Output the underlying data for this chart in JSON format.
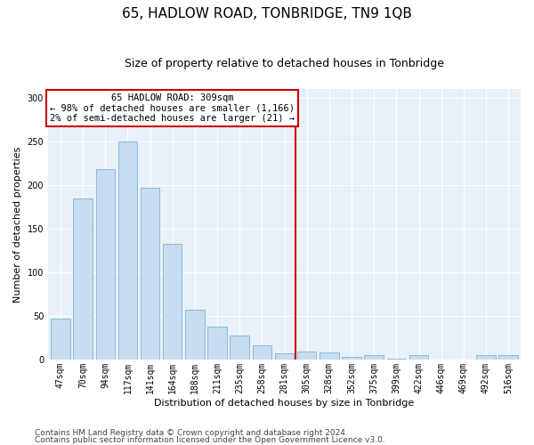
{
  "title": "65, HADLOW ROAD, TONBRIDGE, TN9 1QB",
  "subtitle": "Size of property relative to detached houses in Tonbridge",
  "xlabel": "Distribution of detached houses by size in Tonbridge",
  "ylabel": "Number of detached properties",
  "categories": [
    "47sqm",
    "70sqm",
    "94sqm",
    "117sqm",
    "141sqm",
    "164sqm",
    "188sqm",
    "211sqm",
    "235sqm",
    "258sqm",
    "281sqm",
    "305sqm",
    "328sqm",
    "352sqm",
    "375sqm",
    "399sqm",
    "422sqm",
    "446sqm",
    "469sqm",
    "492sqm",
    "516sqm"
  ],
  "bar_heights": [
    47,
    185,
    218,
    250,
    197,
    133,
    57,
    38,
    27,
    16,
    7,
    9,
    8,
    3,
    5,
    1,
    5,
    0,
    0,
    5,
    5
  ],
  "bar_color": "#c6dcf0",
  "bar_edge_color": "#7fb3d3",
  "vline_color": "#cc0000",
  "annotation_text": "65 HADLOW ROAD: 309sqm\n← 98% of detached houses are smaller (1,166)\n2% of semi-detached houses are larger (21) →",
  "annotation_box_color": "#ffffff",
  "annotation_box_edge_color": "#cc0000",
  "footer_line1": "Contains HM Land Registry data © Crown copyright and database right 2024.",
  "footer_line2": "Contains public sector information licensed under the Open Government Licence v3.0.",
  "ylim": [
    0,
    310
  ],
  "yticks": [
    0,
    50,
    100,
    150,
    200,
    250,
    300
  ],
  "bg_color": "#e8f0f8",
  "title_fontsize": 11,
  "subtitle_fontsize": 9,
  "label_fontsize": 8,
  "tick_fontsize": 7,
  "footer_fontsize": 6.5
}
